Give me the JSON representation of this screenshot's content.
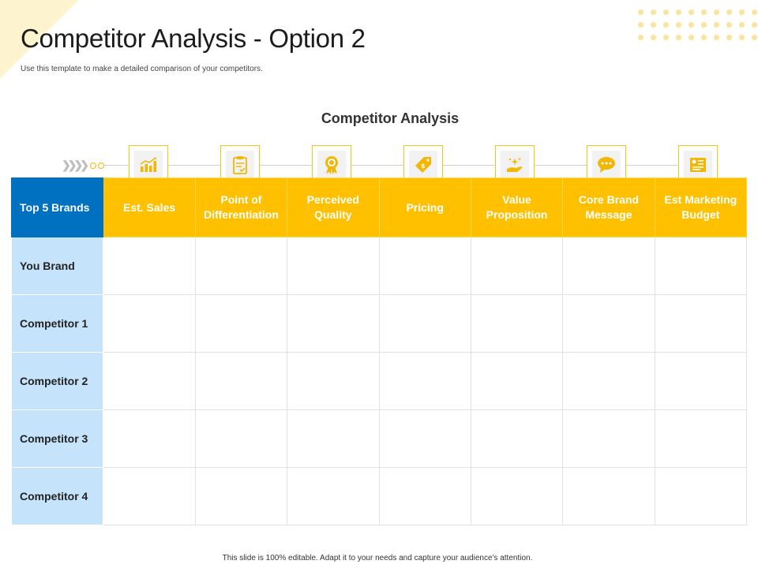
{
  "header": {
    "title": "Competitor Analysis - Option 2",
    "subtitle": "Use this template to make a detailed comparison of your competitors."
  },
  "chart_title": "Competitor Analysis",
  "table": {
    "corner_label": "Top 5 Brands",
    "columns": [
      {
        "label": "Est. Sales",
        "icon": "bar-chart-icon"
      },
      {
        "label": "Point of Differentiation",
        "icon": "clipboard-icon"
      },
      {
        "label": "Perceived Quality",
        "icon": "award-badge-icon"
      },
      {
        "label": "Pricing",
        "icon": "price-tag-icon"
      },
      {
        "label": "Value Proposition",
        "icon": "hand-sparkle-icon"
      },
      {
        "label": "Core Brand Message",
        "icon": "chat-bubble-icon"
      },
      {
        "label": "Est Marketing Budget",
        "icon": "budget-document-icon"
      }
    ],
    "rows": [
      "You Brand",
      "Competitor 1",
      "Competitor 2",
      "Competitor 3",
      "Competitor 4"
    ]
  },
  "colors": {
    "header_yellow": "#ffc000",
    "corner_blue": "#0070c0",
    "row_label_blue": "#c5e3fb"
  },
  "footer": "This slide is 100% editable. Adapt it to your needs and capture your audience's attention."
}
